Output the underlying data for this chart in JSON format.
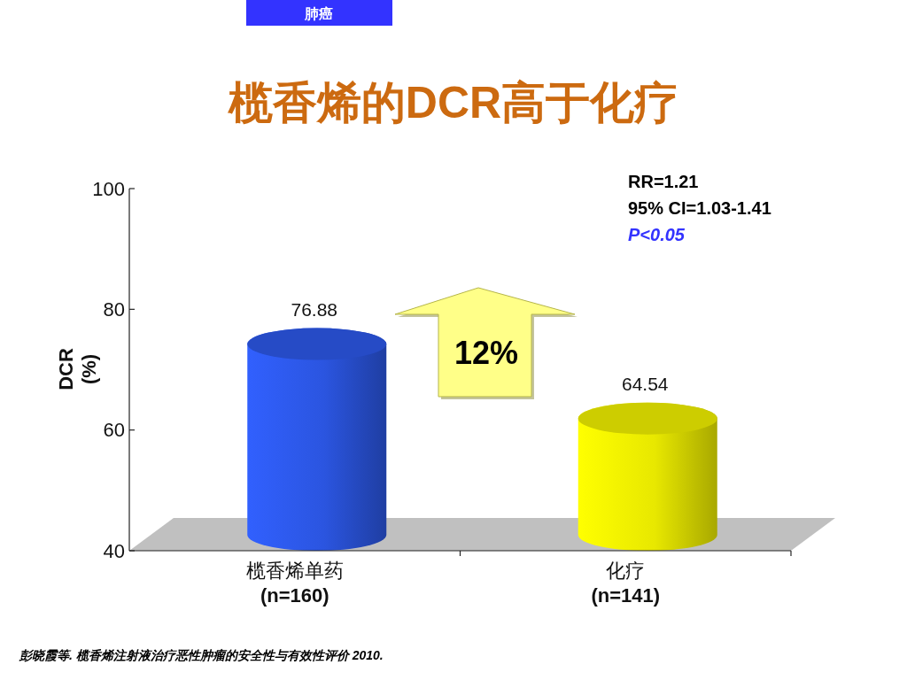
{
  "chart_data": {
    "type": "bar",
    "title": "榄香烯的DCR高于化疗",
    "ylabel": "DCR\n(%)",
    "categories": [
      "榄香烯单药\n(n=160)",
      "化疗\n(n=141)"
    ],
    "values": [
      76.88,
      64.54
    ],
    "colors": [
      "#2b55e0",
      "#e8e800"
    ],
    "ylim": [
      40,
      100
    ],
    "yticks": [
      40,
      60,
      80,
      100
    ],
    "data_labels": true,
    "annotations": [
      "肺癌",
      "12%",
      "RR=1.21",
      "95% CI=1.03-1.41",
      "P<0.05",
      "彭晓霞等. 榄香烯注射液治疗恶性肿瘤的安全性与有效性评价 2010."
    ]
  }
}
